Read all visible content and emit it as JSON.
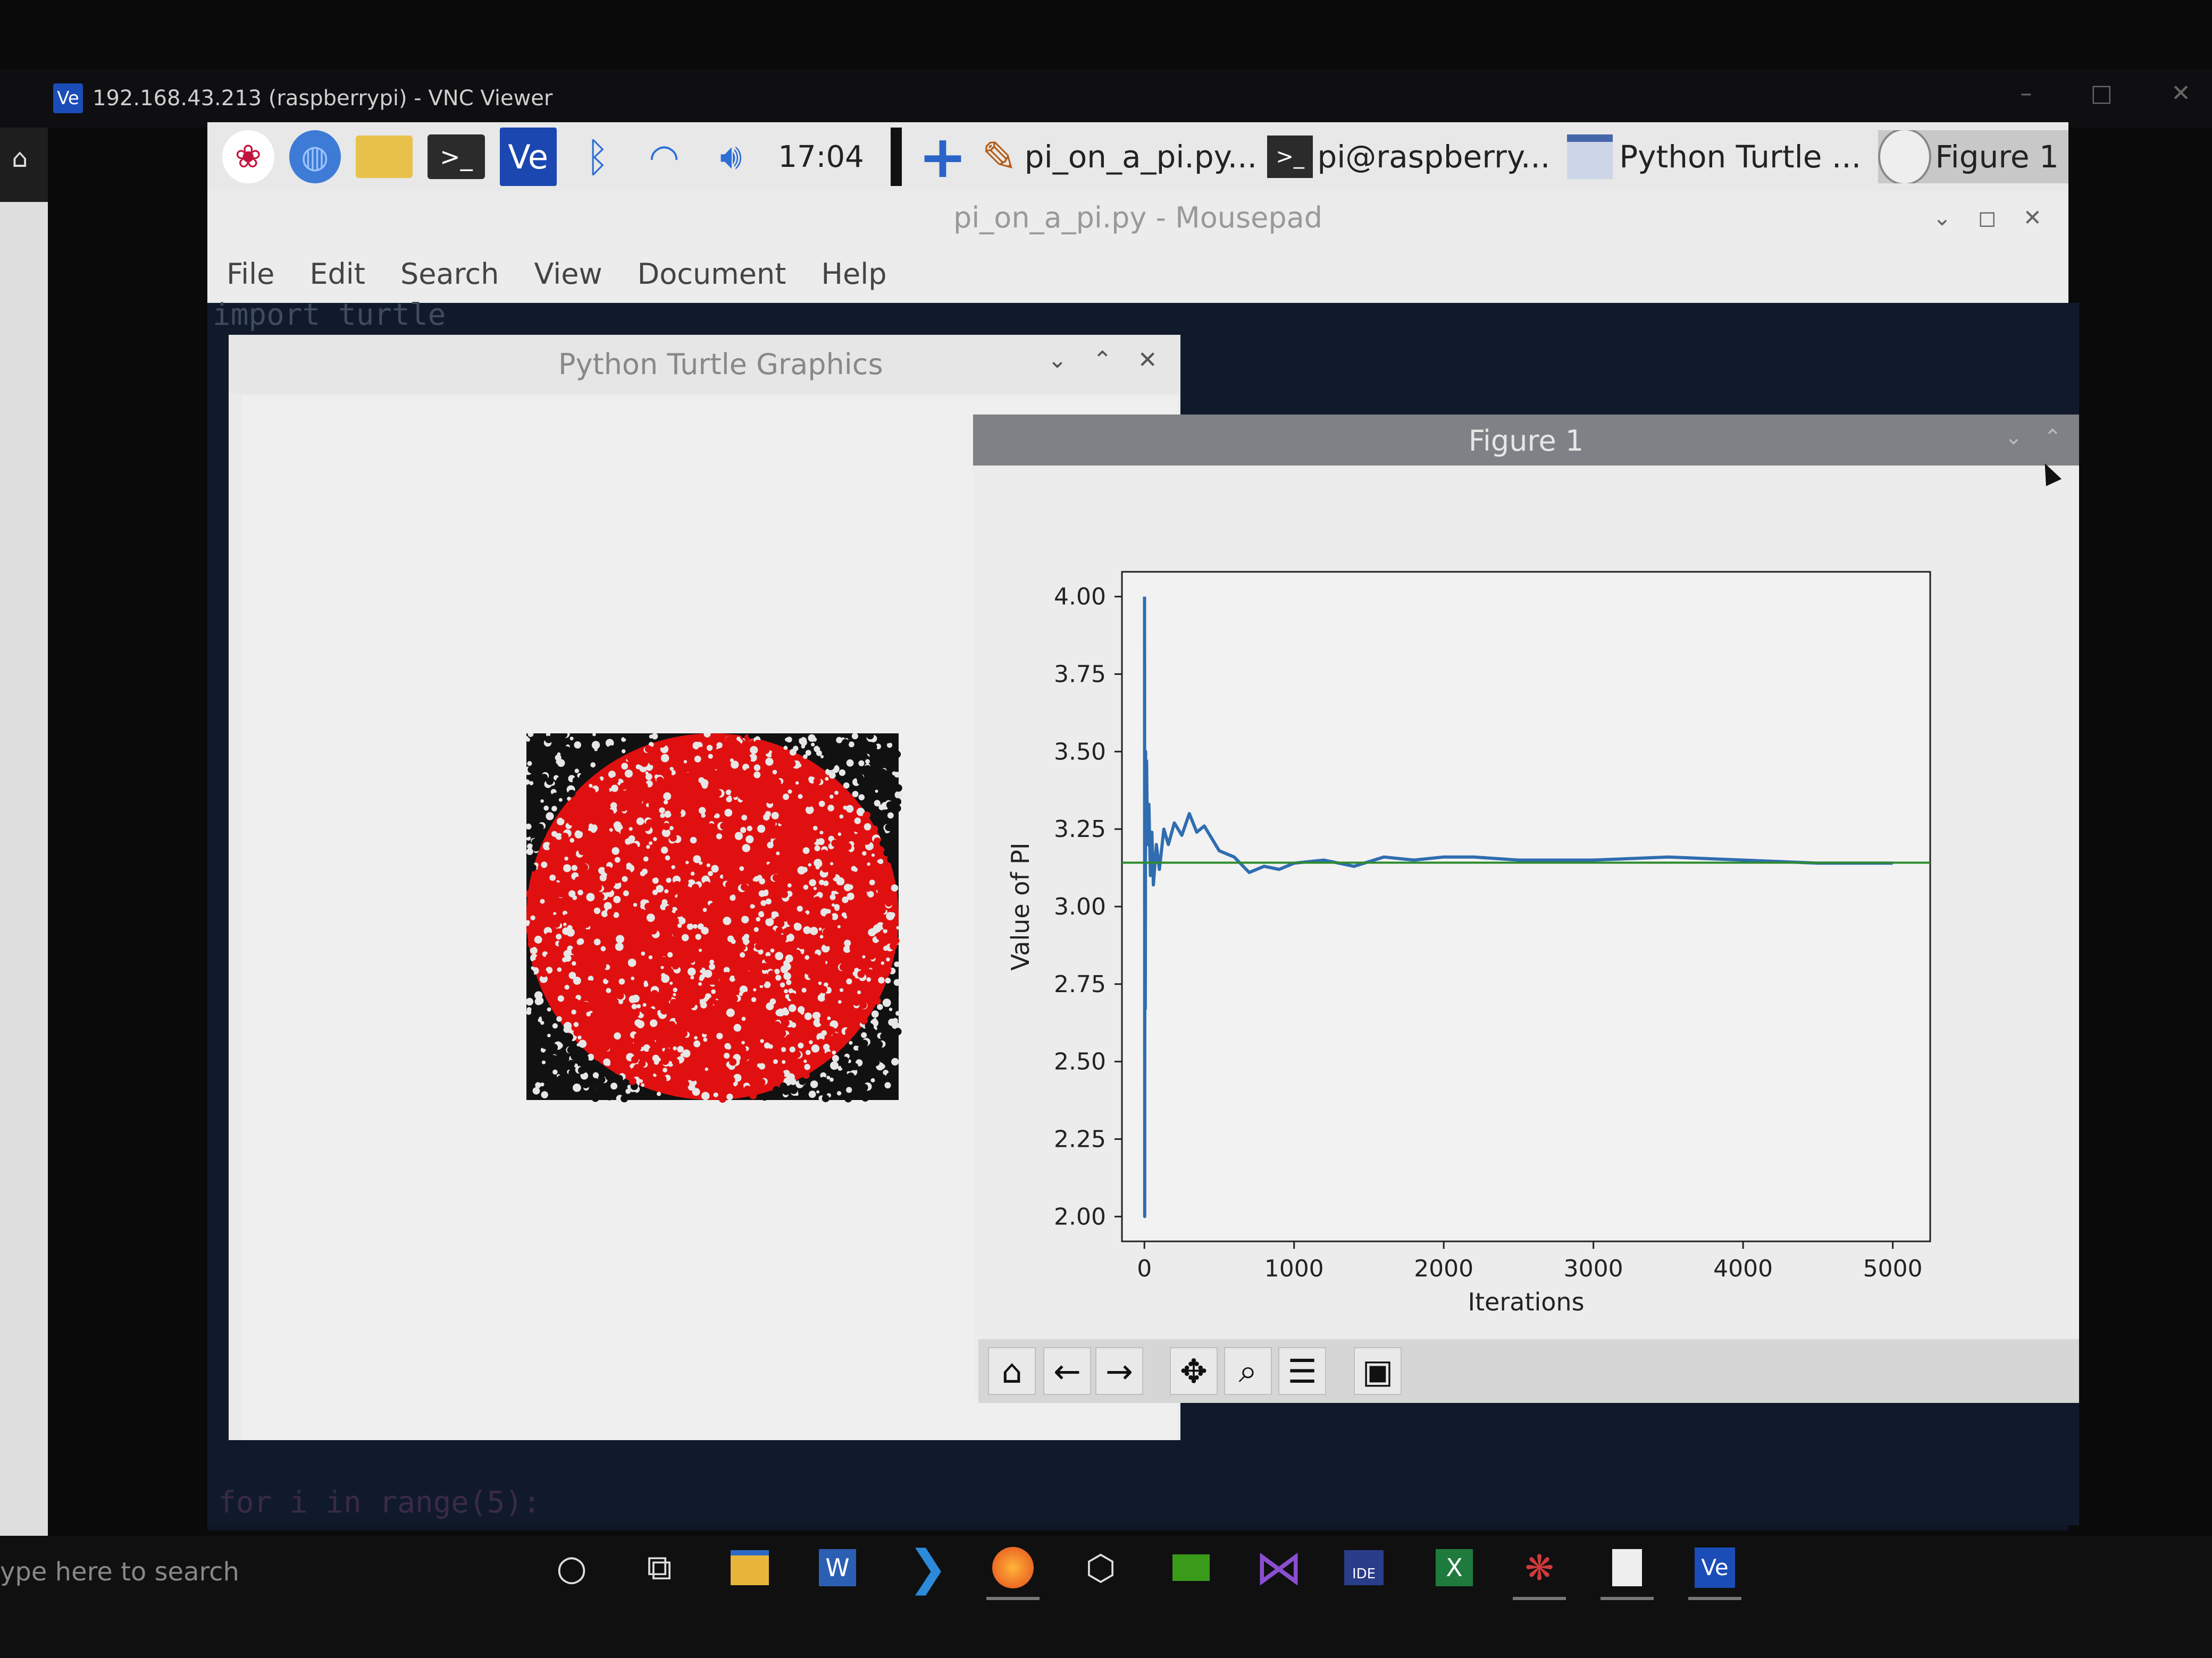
{
  "vnc": {
    "title": "192.168.43.213 (raspberrypi) - VNC Viewer",
    "badge": "Ve"
  },
  "pi_taskbar": {
    "clock": "17:04",
    "tasks": [
      {
        "label": "pi_on_a_pi.py..."
      },
      {
        "label": "pi@raspberry..."
      },
      {
        "label": "Python Turtle ..."
      },
      {
        "label": "Figure 1"
      }
    ]
  },
  "mousepad": {
    "title": "pi_on_a_pi.py - Mousepad",
    "menu": [
      "File",
      "Edit",
      "Search",
      "View",
      "Document",
      "Help"
    ],
    "code_first_line": "import turtle",
    "code_last_line": "for i in range(5):"
  },
  "turtle": {
    "title": "Python Turtle Graphics",
    "colors": {
      "inside": "#e01010",
      "outside": "#111111"
    }
  },
  "figure": {
    "title": "Figure 1",
    "toolbar": [
      "home-icon",
      "back-icon",
      "forward-icon",
      "pan-icon",
      "zoom-icon",
      "configure-icon",
      "save-icon"
    ]
  },
  "chart_data": {
    "type": "line",
    "xlabel": "Iterations",
    "ylabel": "Value of PI",
    "xlim": [
      -150,
      5250
    ],
    "ylim": [
      1.92,
      4.08
    ],
    "xticks": [
      "0",
      "1000",
      "2000",
      "3000",
      "4000",
      "5000"
    ],
    "yticks": [
      "4.00",
      "3.75",
      "3.50",
      "3.25",
      "3.00",
      "2.75",
      "2.50",
      "2.25",
      "2.00"
    ],
    "series": [
      {
        "color": "#2f6db0",
        "x": [
          1,
          2,
          3,
          4,
          5,
          6,
          8,
          10,
          15,
          20,
          30,
          40,
          50,
          60,
          80,
          100,
          130,
          160,
          200,
          250,
          300,
          350,
          400,
          500,
          600,
          700,
          800,
          900,
          1000,
          1200,
          1400,
          1600,
          1800,
          2000,
          2200,
          2500,
          3000,
          3500,
          4000,
          4500,
          5000
        ],
        "y": [
          4.0,
          2.0,
          3.33,
          3.0,
          3.2,
          2.67,
          3.5,
          3.2,
          3.47,
          3.2,
          3.33,
          3.1,
          3.24,
          3.07,
          3.2,
          3.12,
          3.25,
          3.2,
          3.27,
          3.23,
          3.3,
          3.24,
          3.26,
          3.18,
          3.16,
          3.11,
          3.13,
          3.12,
          3.14,
          3.15,
          3.13,
          3.16,
          3.15,
          3.16,
          3.16,
          3.15,
          3.15,
          3.16,
          3.15,
          3.14,
          3.14
        ]
      },
      {
        "color": "#2e8b2e",
        "x": [
          -150,
          5250
        ],
        "y": [
          3.1416,
          3.1416
        ]
      }
    ]
  },
  "windows_taskbar": {
    "search_placeholder": "ype here to search"
  }
}
